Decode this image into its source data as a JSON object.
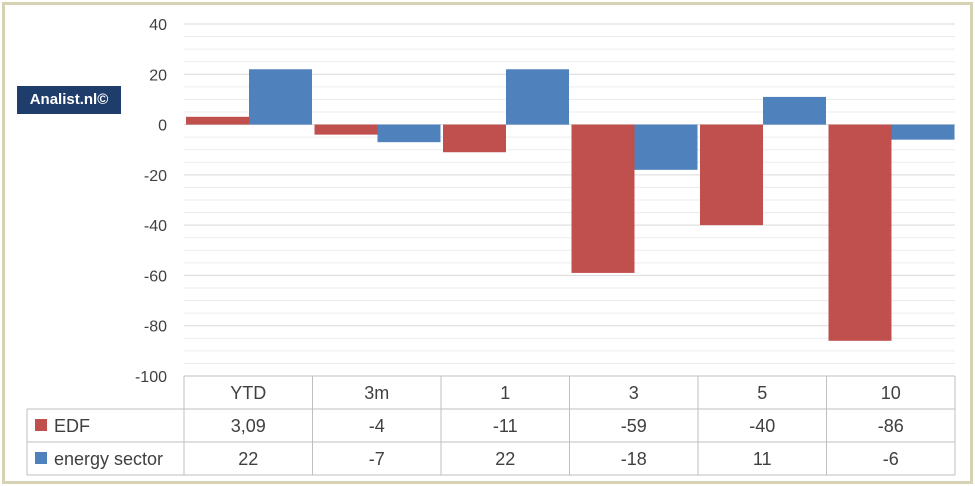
{
  "watermark": "Analist.nl©",
  "chart_data": {
    "type": "bar",
    "categories": [
      "YTD",
      "3m",
      "1",
      "3",
      "5",
      "10"
    ],
    "series": [
      {
        "name": "EDF",
        "color": "#c0504d",
        "values": [
          3.09,
          -4,
          -11,
          -59,
          -40,
          -86
        ],
        "labels": [
          "3,09",
          "-4",
          "-11",
          "-59",
          "-40",
          "-86"
        ]
      },
      {
        "name": "energy sector",
        "color": "#4f81bd",
        "values": [
          22,
          -7,
          22,
          -18,
          11,
          -6
        ],
        "labels": [
          "22",
          "-7",
          "22",
          "-18",
          "11",
          "-6"
        ]
      }
    ],
    "ylim": [
      -100,
      40
    ],
    "yticks": [
      40,
      20,
      0,
      -20,
      -40,
      -60,
      -80,
      -100
    ],
    "grid": true,
    "legend": "data-table"
  }
}
